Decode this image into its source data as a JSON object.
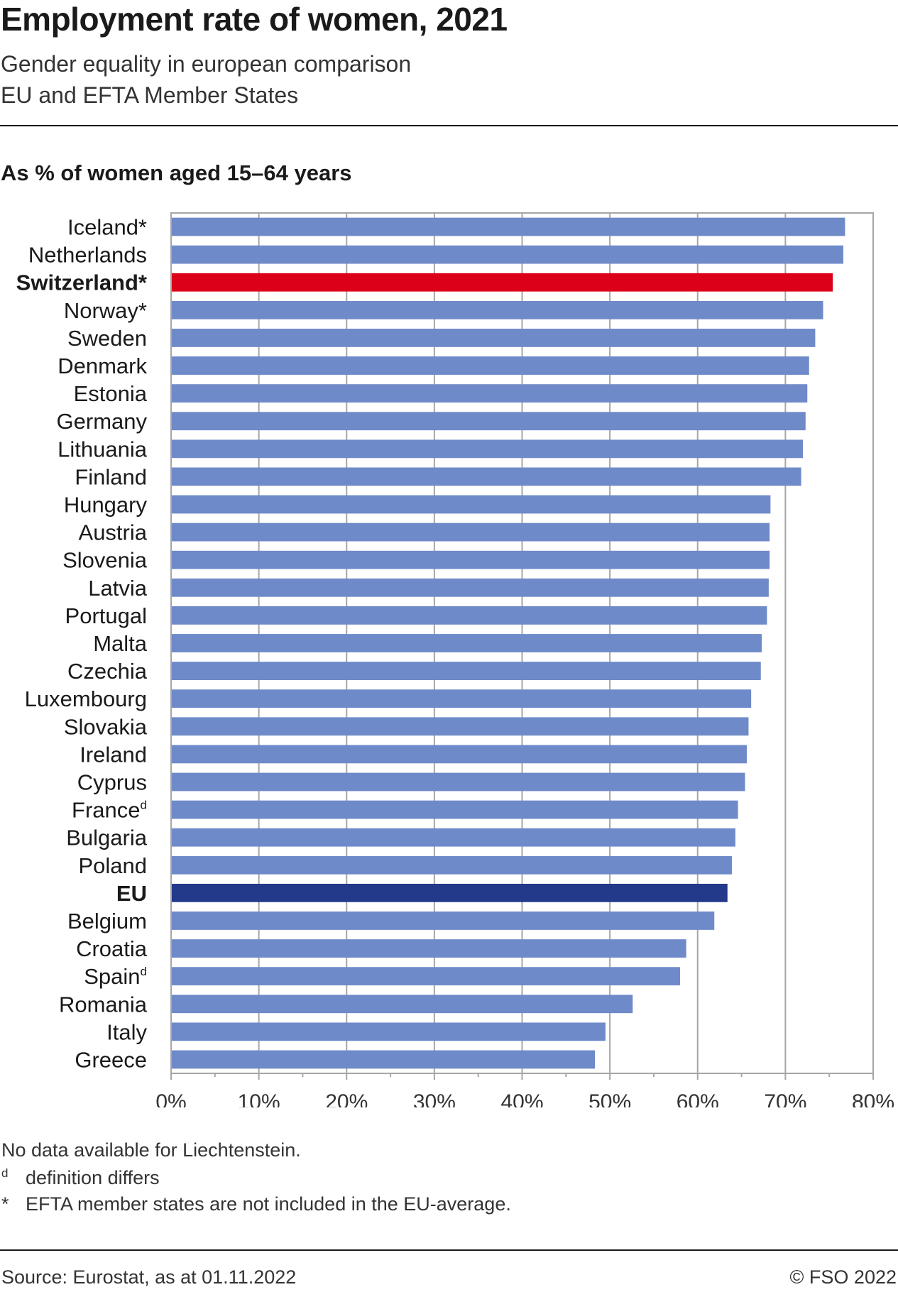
{
  "header": {
    "title": "Employment rate of women, 2021",
    "subtitle_1": "Gender equality in european comparison",
    "subtitle_2": "EU and EFTA Member States",
    "unit_label": "As % of women aged 15–64 years"
  },
  "colors": {
    "default_bar": "#6f8ac9",
    "switzerland_bar": "#dc0018",
    "eu_bar": "#233a8a",
    "grid": "#a6a6a6"
  },
  "chart_data": {
    "type": "bar",
    "orientation": "horizontal",
    "title": "Employment rate of women, 2021",
    "xlabel": "",
    "ylabel": "",
    "xlim": [
      0,
      80
    ],
    "x_ticks": [
      "0%",
      "10%",
      "20%",
      "30%",
      "40%",
      "50%",
      "60%",
      "70%",
      "80%"
    ],
    "grid": true,
    "categories": [
      "Iceland*",
      "Netherlands",
      "Switzerland*",
      "Norway*",
      "Sweden",
      "Denmark",
      "Estonia",
      "Germany",
      "Lithuania",
      "Finland",
      "Hungary",
      "Austria",
      "Slovenia",
      "Latvia",
      "Portugal",
      "Malta",
      "Czechia",
      "Luxembourg",
      "Slovakia",
      "Ireland",
      "Cyprus",
      "France",
      "Bulgaria",
      "Poland",
      "EU",
      "Belgium",
      "Croatia",
      "Spain",
      "Romania",
      "Italy",
      "Greece"
    ],
    "category_superscripts": [
      "",
      "",
      "",
      "",
      "",
      "",
      "",
      "",
      "",
      "",
      "",
      "",
      "",
      "",
      "",
      "",
      "",
      "",
      "",
      "",
      "",
      "d",
      "",
      "",
      "",
      "",
      "",
      "d",
      "",
      "",
      ""
    ],
    "highlight": {
      "Switzerland*": "switzerland",
      "EU": "eu"
    },
    "values": [
      76.8,
      76.6,
      75.4,
      74.3,
      73.4,
      72.7,
      72.5,
      72.3,
      72.0,
      71.8,
      68.3,
      68.2,
      68.2,
      68.1,
      67.9,
      67.3,
      67.2,
      66.1,
      65.8,
      65.6,
      65.4,
      64.6,
      64.3,
      63.9,
      63.4,
      61.9,
      58.7,
      58.0,
      52.6,
      49.5,
      48.3
    ]
  },
  "notes": {
    "line_1": "No data available for Liechtenstein.",
    "line_2_mark": "d",
    "line_2": "definition differs",
    "line_3_mark": "*",
    "line_3": "EFTA member states are not included in the EU-average."
  },
  "footer": {
    "source": "Source: Eurostat, as at 01.11.2022",
    "copyright": "© FSO 2022"
  }
}
